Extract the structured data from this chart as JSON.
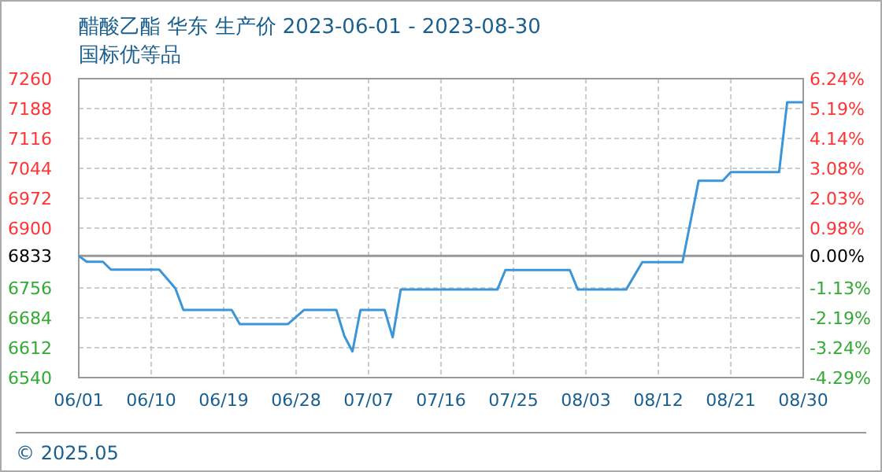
{
  "chart_data": {
    "type": "line",
    "title": "醋酸乙酯 华东 生产价 2023-06-01 - 2023-08-30",
    "subtitle": "国标优等品",
    "annotations": [
      "© 2025.05"
    ],
    "series": [
      {
        "color": "#3a96d8",
        "x": [
          "2023-06-01",
          "2023-06-02",
          "2023-06-04",
          "2023-06-05",
          "2023-06-11",
          "2023-06-13",
          "2023-06-14",
          "2023-06-20",
          "2023-06-21",
          "2023-06-27",
          "2023-06-29",
          "2023-07-03",
          "2023-07-04",
          "2023-07-05",
          "2023-07-06",
          "2023-07-09",
          "2023-07-10",
          "2023-07-11",
          "2023-07-23",
          "2023-07-24",
          "2023-08-01",
          "2023-08-02",
          "2023-08-08",
          "2023-08-10",
          "2023-08-15",
          "2023-08-17",
          "2023-08-20",
          "2023-08-21",
          "2023-08-27",
          "2023-08-28",
          "2023-08-30"
        ],
        "values": [
          6833,
          6819,
          6819,
          6800,
          6800,
          6755,
          6703,
          6703,
          6669,
          6669,
          6703,
          6703,
          6640,
          6603,
          6703,
          6703,
          6637,
          6752,
          6752,
          6799,
          6799,
          6752,
          6752,
          6818,
          6818,
          7014,
          7014,
          7035,
          7035,
          7203,
          7203
        ]
      }
    ],
    "xlim": [
      "2023-06-01",
      "2023-08-30"
    ],
    "xticks": [
      {
        "value": "2023-06-01",
        "label": "06/01"
      },
      {
        "value": "2023-06-10",
        "label": "06/10"
      },
      {
        "value": "2023-06-19",
        "label": "06/19"
      },
      {
        "value": "2023-06-28",
        "label": "06/28"
      },
      {
        "value": "2023-07-07",
        "label": "07/07"
      },
      {
        "value": "2023-07-16",
        "label": "07/16"
      },
      {
        "value": "2023-07-25",
        "label": "07/25"
      },
      {
        "value": "2023-08-03",
        "label": "08/03"
      },
      {
        "value": "2023-08-12",
        "label": "08/12"
      },
      {
        "value": "2023-08-21",
        "label": "08/21"
      },
      {
        "value": "2023-08-30",
        "label": "08/30"
      }
    ],
    "ylim": [
      6540,
      7260
    ],
    "yticks": [
      6540,
      6612,
      6684,
      6756,
      6833,
      6900,
      6972,
      7044,
      7116,
      7188,
      7260
    ],
    "y2lim": [
      -4.29,
      6.24
    ],
    "y2ticks": [
      {
        "value": -4.29,
        "label": "-4.29%"
      },
      {
        "value": -3.24,
        "label": "-3.24%"
      },
      {
        "value": -2.19,
        "label": "-2.19%"
      },
      {
        "value": -1.13,
        "label": "-1.13%"
      },
      {
        "value": 0,
        "label": "0.00%"
      },
      {
        "value": 0.98,
        "label": "0.98%"
      },
      {
        "value": 2.03,
        "label": "2.03%"
      },
      {
        "value": 3.08,
        "label": "3.08%"
      },
      {
        "value": 4.14,
        "label": "4.14%"
      },
      {
        "value": 5.19,
        "label": "5.19%"
      },
      {
        "value": 6.24,
        "label": "6.24%"
      }
    ],
    "ref_lines": [
      {
        "axis": "y",
        "value": 6833,
        "color": "#999999"
      }
    ],
    "grid": true,
    "marker": "none",
    "line_style": "solid"
  }
}
